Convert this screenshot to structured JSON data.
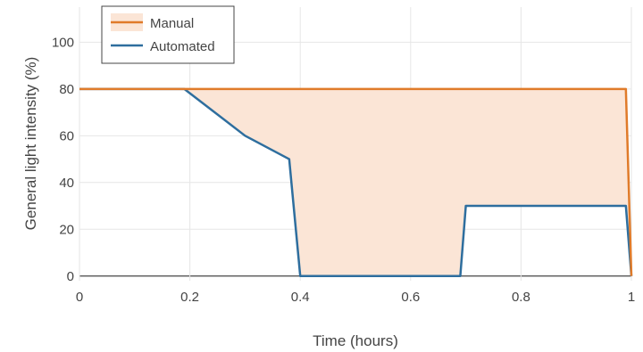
{
  "chart_data": {
    "type": "line",
    "xlabel": "Time (hours)",
    "ylabel": "General light intensity (%)",
    "xlim": [
      0,
      1
    ],
    "ylim": [
      -2,
      115
    ],
    "xticks": [
      0,
      0.2,
      0.4,
      0.6,
      0.8,
      1
    ],
    "xtick_labels": [
      "0",
      "0.2",
      "0.4",
      "0.6",
      "0.8",
      "1"
    ],
    "yticks": [
      0,
      20,
      40,
      60,
      80,
      100
    ],
    "ytick_labels": [
      "0",
      "20",
      "40",
      "60",
      "80",
      "100"
    ],
    "grid": true,
    "legend_position": "top-left",
    "fill_between_series": true,
    "fill_color": "#fbe5d6",
    "series": [
      {
        "name": "Manual",
        "color": "#e07b2a",
        "x": [
          0,
          0.99,
          1
        ],
        "y": [
          80,
          80,
          0
        ]
      },
      {
        "name": "Automated",
        "color": "#2e6e9e",
        "x": [
          0,
          0.19,
          0.3,
          0.38,
          0.4,
          0.69,
          0.7,
          0.99,
          1
        ],
        "y": [
          80,
          80,
          60,
          50,
          0,
          0,
          30,
          30,
          0
        ]
      }
    ]
  }
}
